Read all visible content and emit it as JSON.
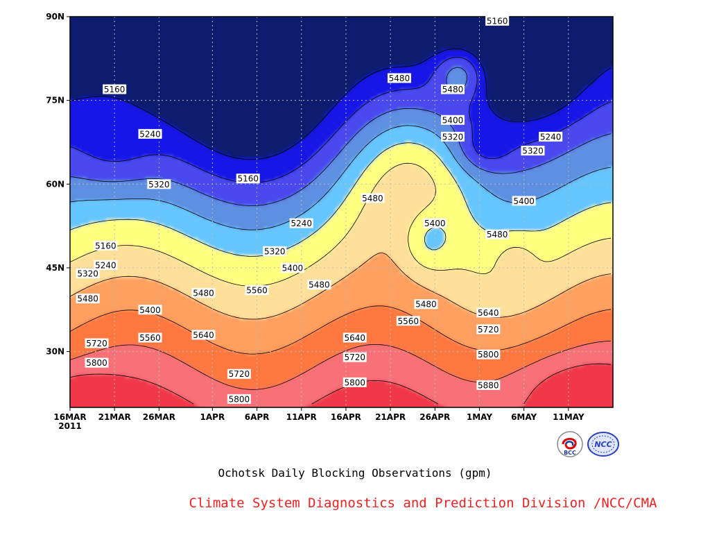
{
  "chart_data": {
    "type": "heatmap",
    "title": "Ochotsk Daily Blocking Observations (gpm)",
    "x_axis": {
      "tick_labels": [
        "16MAR",
        "21MAR",
        "26MAR",
        "1APR",
        "6APR",
        "11APR",
        "16APR",
        "21APR",
        "26APR",
        "1MAY",
        "6MAY",
        "11MAY"
      ],
      "year_label": "2011",
      "range": [
        "2011-03-16",
        "2011-05-16"
      ]
    },
    "y_axis": {
      "tick_labels": [
        "90N",
        "75N",
        "60N",
        "45N",
        "30N"
      ],
      "range": [
        20,
        90
      ]
    },
    "contour_levels": [
      5160,
      5240,
      5320,
      5400,
      5480,
      5560,
      5640,
      5720,
      5800,
      5880
    ],
    "fill_colors": [
      "#0a1a6e",
      "#1414e6",
      "#4a4aee",
      "#5f8fe0",
      "#66c6ff",
      "#ffff80",
      "#ffe09b",
      "#ffa060",
      "#ff7840",
      "#f87078",
      "#f03848"
    ],
    "contour_labels": [
      {
        "text": "5160",
        "date": "2011-03-21",
        "lat": 77
      },
      {
        "text": "5240",
        "date": "2011-03-25",
        "lat": 69
      },
      {
        "text": "5320",
        "date": "2011-03-26",
        "lat": 60
      },
      {
        "text": "5160",
        "date": "2011-04-05",
        "lat": 61
      },
      {
        "text": "5240",
        "date": "2011-04-11",
        "lat": 53
      },
      {
        "text": "5320",
        "date": "2011-04-08",
        "lat": 48
      },
      {
        "text": "5400",
        "date": "2011-04-10",
        "lat": 45
      },
      {
        "text": "5480",
        "date": "2011-04-13",
        "lat": 42
      },
      {
        "text": "5160",
        "date": "2011-03-20",
        "lat": 49
      },
      {
        "text": "5240",
        "date": "2011-03-20",
        "lat": 45.5
      },
      {
        "text": "5320",
        "date": "2011-03-18",
        "lat": 44
      },
      {
        "text": "5480",
        "date": "2011-03-18",
        "lat": 39.5
      },
      {
        "text": "5400",
        "date": "2011-03-25",
        "lat": 37.5
      },
      {
        "text": "5560",
        "date": "2011-03-25",
        "lat": 32.5
      },
      {
        "text": "5480",
        "date": "2011-03-31",
        "lat": 40.5
      },
      {
        "text": "5560",
        "date": "2011-04-06",
        "lat": 41
      },
      {
        "text": "5640",
        "date": "2011-03-31",
        "lat": 33
      },
      {
        "text": "5720",
        "date": "2011-03-19",
        "lat": 31.5
      },
      {
        "text": "5720",
        "date": "2011-04-04",
        "lat": 26
      },
      {
        "text": "5800",
        "date": "2011-03-19",
        "lat": 28
      },
      {
        "text": "5800",
        "date": "2011-04-04",
        "lat": 21.5
      },
      {
        "text": "5480",
        "date": "2011-04-19",
        "lat": 57.5
      },
      {
        "text": "5480",
        "date": "2011-04-22",
        "lat": 79
      },
      {
        "text": "5480",
        "date": "2011-04-28",
        "lat": 77
      },
      {
        "text": "5400",
        "date": "2011-04-28",
        "lat": 71.5
      },
      {
        "text": "5320",
        "date": "2011-04-28",
        "lat": 68.5
      },
      {
        "text": "5160",
        "date": "2011-05-03",
        "lat": 89.5
      },
      {
        "text": "5240",
        "date": "2011-05-09",
        "lat": 68.5
      },
      {
        "text": "5320",
        "date": "2011-05-07",
        "lat": 66
      },
      {
        "text": "5400",
        "date": "2011-05-06",
        "lat": 57
      },
      {
        "text": "5400",
        "date": "2011-04-26",
        "lat": 53
      },
      {
        "text": "5480",
        "date": "2011-05-03",
        "lat": 51
      },
      {
        "text": "5480",
        "date": "2011-04-25",
        "lat": 38.5
      },
      {
        "text": "5560",
        "date": "2011-04-23",
        "lat": 35.5
      },
      {
        "text": "5640",
        "date": "2011-05-02",
        "lat": 37
      },
      {
        "text": "5720",
        "date": "2011-05-02",
        "lat": 34
      },
      {
        "text": "5800",
        "date": "2011-05-02",
        "lat": 29.5
      },
      {
        "text": "5880",
        "date": "2011-05-02",
        "lat": 24
      },
      {
        "text": "5640",
        "date": "2011-04-17",
        "lat": 32.5
      },
      {
        "text": "5720",
        "date": "2011-04-17",
        "lat": 29
      },
      {
        "text": "5800",
        "date": "2011-04-17",
        "lat": 24.5
      }
    ]
  },
  "footer": {
    "caption": "Ochotsk Daily Blocking Observations (gpm)",
    "credit": "Climate System Diagnostics and Prediction Division /NCC/CMA",
    "logo_left_text": "BCC",
    "logo_right_text": "NCC"
  }
}
